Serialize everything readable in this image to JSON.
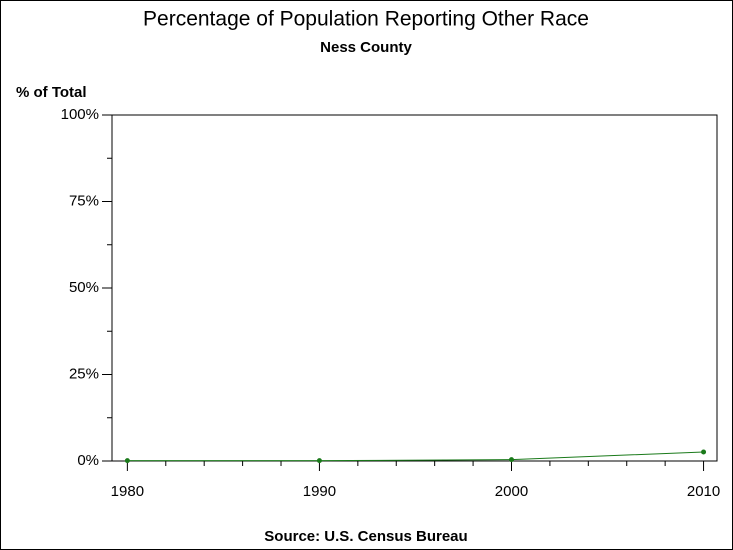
{
  "chart_data": {
    "type": "line",
    "title": "Percentage of Population Reporting Other Race",
    "subtitle": "Ness County",
    "y_label": "% of Total",
    "source": "Source: U.S. Census Bureau",
    "x": [
      1980,
      1990,
      2000,
      2010
    ],
    "series": [
      {
        "name": "Other Race",
        "color": "#1a7a1a",
        "values": [
          0.1,
          0.1,
          0.4,
          2.6
        ]
      }
    ],
    "xlim": [
      1979.2,
      2010.7
    ],
    "xticks": [
      1980,
      1990,
      2000,
      2010
    ],
    "xminorticks": [
      1982,
      1984,
      1986,
      1988,
      1992,
      1994,
      1996,
      1998,
      2002,
      2004,
      2006,
      2008
    ],
    "ylim": [
      0,
      100
    ],
    "yticks": [
      {
        "value": 0,
        "label": "0%"
      },
      {
        "value": 25,
        "label": "25%"
      },
      {
        "value": 50,
        "label": "50%"
      },
      {
        "value": 75,
        "label": "75%"
      },
      {
        "value": 100,
        "label": "100%"
      }
    ],
    "yminorticks": [
      12.5,
      37.5,
      62.5,
      87.5
    ]
  }
}
